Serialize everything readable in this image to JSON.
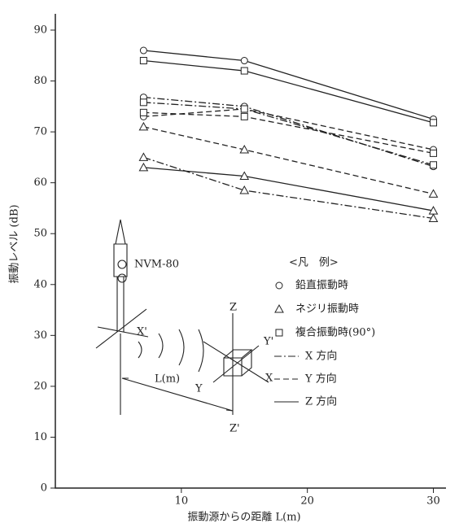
{
  "chart_data": {
    "type": "line",
    "y_label": "振動レベル (dB)",
    "x_label": "振動源からの距離 L(m)",
    "x": [
      7,
      15,
      30
    ],
    "xlim": [
      0,
      31
    ],
    "xticks": [
      10,
      20,
      30
    ],
    "ylim": [
      0,
      90
    ],
    "yticks": [
      0,
      10,
      20,
      30,
      40,
      50,
      60,
      70,
      80,
      90
    ],
    "series": [
      {
        "marker": "circle",
        "dash": "solid",
        "color": "#222",
        "values": [
          86,
          84,
          72.5
        ]
      },
      {
        "marker": "circle",
        "dash": "dashdot",
        "color": "#222",
        "values": [
          76.8,
          75,
          63.2
        ]
      },
      {
        "marker": "circle",
        "dash": "dashed",
        "color": "#222",
        "values": [
          73,
          74.5,
          66.5
        ]
      },
      {
        "marker": "square",
        "dash": "solid",
        "color": "#222",
        "values": [
          84,
          82,
          71.8
        ]
      },
      {
        "marker": "square",
        "dash": "dashdot",
        "color": "#222",
        "values": [
          75.8,
          74.5,
          63.5
        ]
      },
      {
        "marker": "square",
        "dash": "dashed",
        "color": "#222",
        "values": [
          73.8,
          73,
          65.8
        ]
      },
      {
        "marker": "triangle",
        "dash": "dashed",
        "color": "#222",
        "values": [
          71,
          66.5,
          57.8
        ]
      },
      {
        "marker": "triangle",
        "dash": "dashdot",
        "color": "#222",
        "values": [
          65,
          58.5,
          53
        ]
      },
      {
        "marker": "triangle",
        "dash": "solid",
        "color": "#222",
        "values": [
          63,
          61.3,
          54.5
        ]
      }
    ],
    "legend": {
      "title": "<凡　例>",
      "markers": [
        {
          "label": "鉛直振動時",
          "marker": "circle"
        },
        {
          "label": "ネジリ振動時",
          "marker": "triangle"
        },
        {
          "label": "複合振動時(90°)",
          "marker": "square"
        }
      ],
      "lines": [
        {
          "label": "X 方向",
          "dash": "dashdot"
        },
        {
          "label": "Y 方向",
          "dash": "dashed"
        },
        {
          "label": "Z 方向",
          "dash": "solid"
        }
      ]
    },
    "diagram": {
      "sensor": "NVM-80",
      "length": "L(m)",
      "z": "Z",
      "z_prime": "Z'",
      "x": "X",
      "x_prime": "X'",
      "y": "Y",
      "y_prime": "Y'"
    }
  }
}
